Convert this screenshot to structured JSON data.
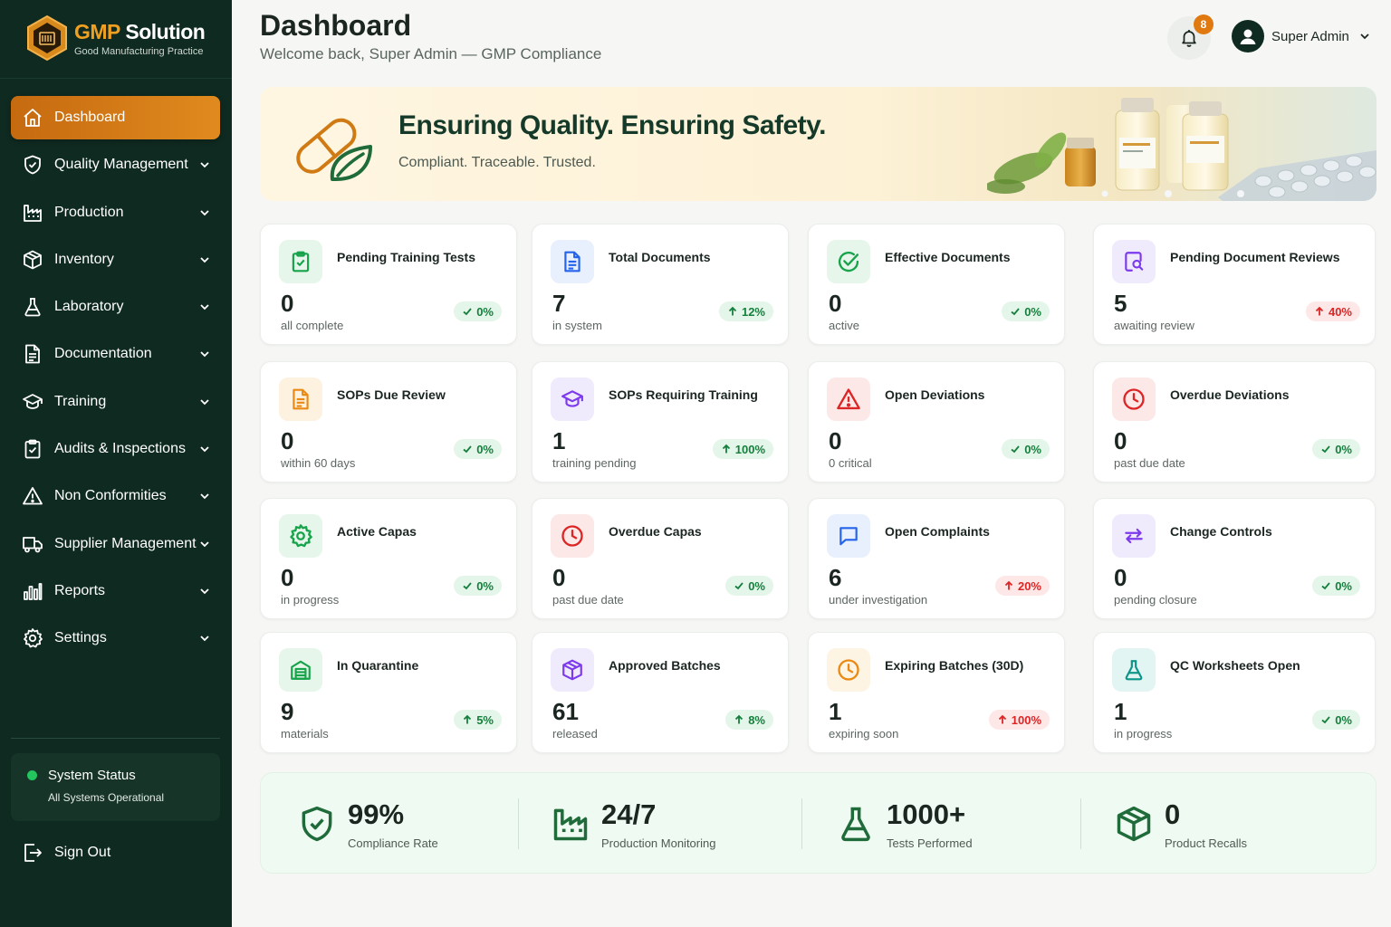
{
  "brand": {
    "title_accent": "GMP",
    "title_rest": " Solution",
    "subtitle": "Good Manufacturing Practice"
  },
  "sidebar": {
    "items": [
      {
        "label": "Dashboard",
        "icon": "home-icon",
        "active": true
      },
      {
        "label": "Quality Management",
        "icon": "shield-check-icon"
      },
      {
        "label": "Production",
        "icon": "factory-icon"
      },
      {
        "label": "Inventory",
        "icon": "box-icon"
      },
      {
        "label": "Laboratory",
        "icon": "flask-icon"
      },
      {
        "label": "Documentation",
        "icon": "document-icon"
      },
      {
        "label": "Training",
        "icon": "graduation-cap-icon"
      },
      {
        "label": "Audits & Inspections",
        "icon": "clipboard-icon"
      },
      {
        "label": "Non Conformities",
        "icon": "warning-icon"
      },
      {
        "label": "Supplier Management",
        "icon": "truck-icon"
      },
      {
        "label": "Reports",
        "icon": "bar-chart-icon"
      },
      {
        "label": "Settings",
        "icon": "gear-icon"
      }
    ],
    "status": {
      "title": "System Status",
      "detail": "All Systems Operational"
    },
    "signout": "Sign Out"
  },
  "header": {
    "title": "Dashboard",
    "subtitle": "Welcome back, Super Admin — GMP Compliance",
    "notifications": "8",
    "user": "Super Admin"
  },
  "banner": {
    "title": "Ensuring Quality. Ensuring Safety.",
    "subtitle": "Compliant. Traceable. Trusted."
  },
  "cards": [
    {
      "label": "Pending Training Tests",
      "value": "0",
      "sub": "all complete",
      "change": "0%",
      "trend": "flat",
      "color": "#16a34a",
      "bg": "#e6f6ea",
      "icon": "clipboard-check-icon"
    },
    {
      "label": "Total Documents",
      "value": "7",
      "sub": "in system",
      "change": "12%",
      "trend": "up",
      "color": "#2563eb",
      "bg": "#e8effd",
      "icon": "document-icon"
    },
    {
      "label": "Effective Documents",
      "value": "0",
      "sub": "active",
      "change": "0%",
      "trend": "flat",
      "color": "#16a34a",
      "bg": "#e6f6ea",
      "icon": "check-circle-icon"
    },
    {
      "label": "Pending Document Reviews",
      "value": "5",
      "sub": "awaiting review",
      "change": "40%",
      "trend": "down",
      "color": "#7c3aed",
      "bg": "#f0eafd",
      "icon": "search-document-icon"
    },
    {
      "label": "SOPs Due Review",
      "value": "0",
      "sub": "within 60 days",
      "change": "0%",
      "trend": "flat",
      "color": "#ea8a14",
      "bg": "#fdf1e0",
      "icon": "document-icon"
    },
    {
      "label": "SOPs Requiring Training",
      "value": "1",
      "sub": "training pending",
      "change": "100%",
      "trend": "up",
      "color": "#7c3aed",
      "bg": "#f0eafd",
      "icon": "graduation-cap-icon"
    },
    {
      "label": "Open Deviations",
      "value": "0",
      "sub": "0 critical",
      "change": "0%",
      "trend": "flat",
      "color": "#dc2626",
      "bg": "#fde8e8",
      "icon": "warning-icon"
    },
    {
      "label": "Overdue Deviations",
      "value": "0",
      "sub": "past due date",
      "change": "0%",
      "trend": "flat",
      "color": "#dc2626",
      "bg": "#fde8e8",
      "icon": "clock-icon"
    },
    {
      "label": "Active Capas",
      "value": "0",
      "sub": "in progress",
      "change": "0%",
      "trend": "flat",
      "color": "#16a34a",
      "bg": "#e6f6ea",
      "icon": "gear-icon"
    },
    {
      "label": "Overdue Capas",
      "value": "0",
      "sub": "past due date",
      "change": "0%",
      "trend": "flat",
      "color": "#dc2626",
      "bg": "#fde8e8",
      "icon": "clock-icon"
    },
    {
      "label": "Open Complaints",
      "value": "6",
      "sub": "under investigation",
      "change": "20%",
      "trend": "down",
      "color": "#2563eb",
      "bg": "#e8effd",
      "icon": "chat-icon"
    },
    {
      "label": "Change Controls",
      "value": "0",
      "sub": "pending closure",
      "change": "0%",
      "trend": "flat",
      "color": "#7c3aed",
      "bg": "#f0eafd",
      "icon": "swap-icon"
    },
    {
      "label": "In Quarantine",
      "value": "9",
      "sub": "materials",
      "change": "5%",
      "trend": "up",
      "color": "#16a34a",
      "bg": "#e6f6ea",
      "icon": "warehouse-icon"
    },
    {
      "label": "Approved Batches",
      "value": "61",
      "sub": "released",
      "change": "8%",
      "trend": "up",
      "color": "#7c3aed",
      "bg": "#f0eafd",
      "icon": "box-icon"
    },
    {
      "label": "Expiring Batches (30D)",
      "value": "1",
      "sub": "expiring soon",
      "change": "100%",
      "trend": "down",
      "color": "#ea8a14",
      "bg": "#fdf4e3",
      "icon": "clock-icon"
    },
    {
      "label": "QC Worksheets Open",
      "value": "1",
      "sub": "in progress",
      "change": "0%",
      "trend": "flat",
      "color": "#0d9488",
      "bg": "#e3f5f2",
      "icon": "flask-icon"
    }
  ],
  "summary": [
    {
      "value": "99%",
      "label": "Compliance Rate",
      "icon": "shield-check-icon"
    },
    {
      "value": "24/7",
      "label": "Production Monitoring",
      "icon": "factory-icon"
    },
    {
      "value": "1000+",
      "label": "Tests Performed",
      "icon": "flask-icon"
    },
    {
      "value": "0",
      "label": "Product Recalls",
      "icon": "box-icon"
    }
  ],
  "colors": {
    "sidebar": "#0f2a20",
    "accent": "#e08a1e",
    "success": "#16a34a",
    "danger": "#dc2626"
  }
}
